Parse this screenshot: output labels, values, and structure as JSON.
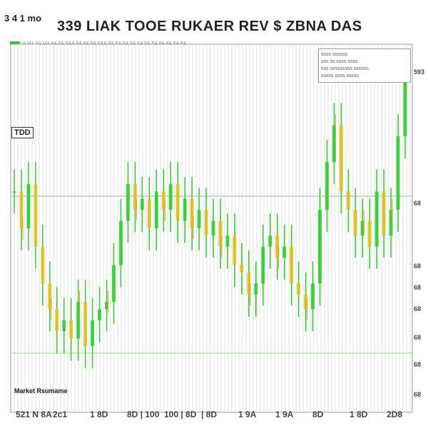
{
  "header": {
    "corner_label": "3 4 1 mo",
    "title": "339 LIAK TOOE RUKAER REV $ ZBNA DAS",
    "strip_text": "8 Ma 9A Ma 8A 8A 8AA 8A 8A 8A 8AA 8A 8A 8A 8A 8A 8A 8A 8A 8A 8A 8A"
  },
  "legend": {
    "lines": [
      "ssss ssssss",
      "sss ss ssss ssss",
      "sss sssssssss ssssss",
      "sssss ssss sssss"
    ]
  },
  "annotations": {
    "box_label": "TDD",
    "bottom_label": "Market Rsumame"
  },
  "colors": {
    "up": "#2ecc2e",
    "down": "#e0c020",
    "accent": "#f08a1c",
    "grid": "#cccccc",
    "baseline": "#9be39b"
  },
  "chart_data": {
    "type": "bar",
    "title": "339 LIAK TOOE RUKAER REV $ ZBNA DAS",
    "grid": true,
    "legend": "top-right",
    "x_tick_labels": [
      "521 N 8A",
      "2c1",
      "1 8D",
      "8D | 100",
      "100 | 8D",
      "| 8D",
      "1 9A",
      "1 9A",
      "8D",
      "1 8D",
      "2D8"
    ],
    "y_right_tick_labels": [
      "593",
      "68",
      "68",
      "68",
      "68",
      "68",
      "68",
      "68"
    ],
    "ylim": [
      0,
      100
    ],
    "values": [
      60,
      50,
      62,
      45,
      35,
      28,
      22,
      25,
      20,
      30,
      18,
      25,
      28,
      30,
      40,
      52,
      62,
      55,
      58,
      50,
      60,
      55,
      62,
      52,
      58,
      50,
      55,
      48,
      52,
      45,
      48,
      40,
      38,
      32,
      35,
      45,
      48,
      42,
      45,
      35,
      32,
      28,
      35,
      55,
      68,
      78,
      60,
      55,
      48,
      52,
      45,
      60,
      48,
      55,
      75,
      92
    ]
  }
}
